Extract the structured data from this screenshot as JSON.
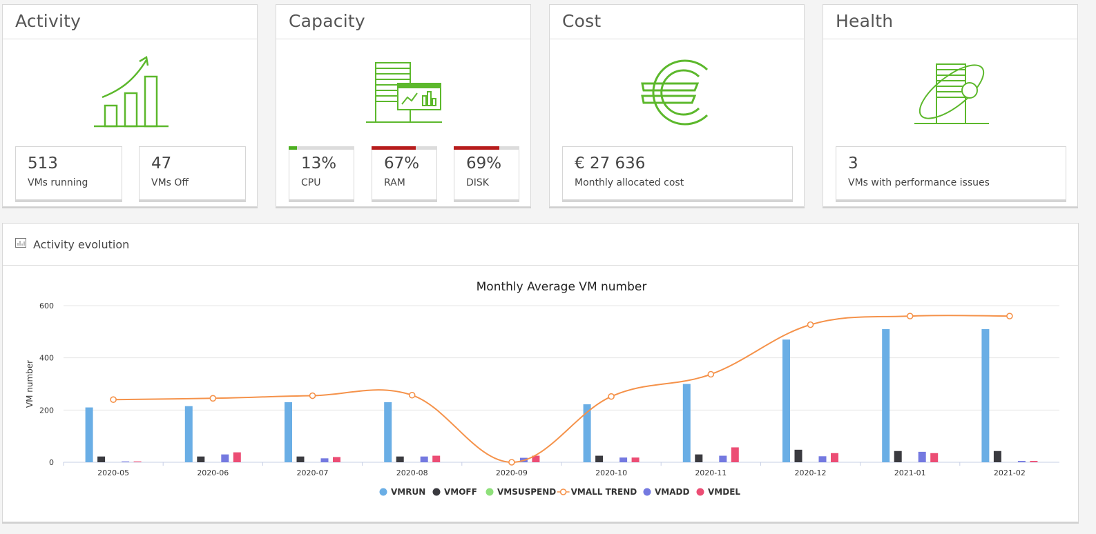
{
  "activity": {
    "title": "Activity",
    "running_value": "513",
    "running_label": "VMs running",
    "off_value": "47",
    "off_label": "VMs Off"
  },
  "capacity": {
    "title": "Capacity",
    "cpu_value": "13%",
    "cpu_label": "CPU",
    "cpu_usage": 0.13,
    "cpu_color": "#4caf20",
    "ram_value": "67%",
    "ram_label": "RAM",
    "ram_usage": 0.67,
    "ram_color": "#b71c1c",
    "disk_value": "69%",
    "disk_label": "DISK",
    "disk_usage": 0.69,
    "disk_color": "#b71c1c"
  },
  "cost": {
    "title": "Cost",
    "value": "€ 27 636",
    "label": "Monthly allocated cost"
  },
  "health": {
    "title": "Health",
    "value": "3",
    "label": "VMs with performance issues"
  },
  "icons": {
    "activity": "growth-chart-icon",
    "capacity": "server-chart-icon",
    "cost": "euro-icon",
    "health": "server-orbit-icon",
    "panel": "chart-small-icon"
  },
  "colors": {
    "icon_green": "#5cb82c"
  },
  "panel": {
    "title": "Activity evolution"
  },
  "chart_data": {
    "type": "bar",
    "title": "Monthly Average VM number",
    "ylabel": "VM number",
    "xlabel": "",
    "ylim": [
      0,
      600
    ],
    "yticks": [
      0,
      200,
      400,
      600
    ],
    "categories": [
      "2020-05",
      "2020-06",
      "2020-07",
      "2020-08",
      "2020-09",
      "2020-10",
      "2020-11",
      "2020-12",
      "2021-01",
      "2021-02"
    ],
    "series": [
      {
        "name": "VMRUN",
        "kind": "bar",
        "color": "#6aaee5",
        "values": [
          210,
          215,
          230,
          230,
          0,
          222,
          300,
          470,
          510,
          510
        ]
      },
      {
        "name": "VMOFF",
        "kind": "bar",
        "color": "#3a3a3f",
        "values": [
          22,
          22,
          22,
          22,
          0,
          25,
          30,
          48,
          43,
          43
        ]
      },
      {
        "name": "VMSUSPEND",
        "kind": "bar",
        "color": "#8ee07a",
        "values": [
          0,
          0,
          0,
          0,
          0,
          0,
          0,
          0,
          0,
          0
        ]
      },
      {
        "name": "VMALL TREND",
        "kind": "line",
        "color": "#f5924a",
        "values": [
          240,
          245,
          255,
          257,
          0,
          252,
          337,
          527,
          560,
          560
        ]
      },
      {
        "name": "VMADD",
        "kind": "bar",
        "color": "#7479e0",
        "values": [
          3,
          30,
          15,
          22,
          17,
          18,
          25,
          23,
          40,
          5
        ]
      },
      {
        "name": "VMDEL",
        "kind": "bar",
        "color": "#ec4d74",
        "values": [
          3,
          38,
          20,
          25,
          25,
          18,
          57,
          35,
          35,
          5
        ]
      }
    ],
    "legend_position": "bottom",
    "grid": true
  }
}
